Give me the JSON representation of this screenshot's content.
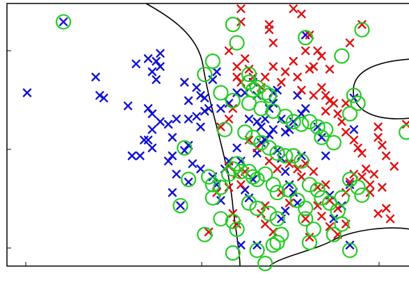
{
  "chart_data": {
    "type": "scatter",
    "title": "",
    "xlabel": "",
    "ylabel": "",
    "xlim": [
      0,
      100
    ],
    "ylim": [
      0,
      100
    ],
    "grid": false,
    "legend": "none",
    "colors": {
      "class_1": "#1010d0",
      "class_2": "#e01010",
      "support_vector_circle": "#22cc22",
      "boundary": "#000000"
    },
    "series": [
      {
        "values": [
          [
            14,
            93
          ],
          [
            5,
            66
          ],
          [
            22,
            72
          ],
          [
            23,
            65
          ],
          [
            24,
            64
          ],
          [
            32,
            77
          ],
          [
            35,
            79
          ],
          [
            36,
            74
          ],
          [
            37,
            71
          ],
          [
            38,
            81
          ],
          [
            37,
            78
          ],
          [
            38,
            76
          ],
          [
            44,
            70
          ],
          [
            47,
            68
          ],
          [
            45,
            63
          ],
          [
            48,
            65
          ],
          [
            30,
            61
          ],
          [
            35,
            60
          ],
          [
            36,
            58
          ],
          [
            36,
            52
          ],
          [
            38,
            55
          ],
          [
            40,
            54
          ],
          [
            42,
            56
          ],
          [
            41,
            49
          ],
          [
            45,
            56
          ],
          [
            47,
            57
          ],
          [
            48,
            53
          ],
          [
            49,
            59
          ],
          [
            50,
            60
          ],
          [
            51,
            71
          ],
          [
            52,
            74
          ],
          [
            49,
            64
          ],
          [
            53,
            60
          ],
          [
            31,
            42
          ],
          [
            33,
            42
          ],
          [
            34,
            48
          ],
          [
            35,
            48
          ],
          [
            36,
            45
          ],
          [
            40,
            40
          ],
          [
            41,
            42
          ],
          [
            44,
            44
          ],
          [
            45,
            46
          ],
          [
            46,
            39
          ],
          [
            45,
            32
          ],
          [
            42,
            35
          ],
          [
            41,
            28
          ],
          [
            43,
            23
          ],
          [
            48,
            37
          ],
          [
            51,
            34
          ],
          [
            52,
            31
          ],
          [
            53,
            25
          ],
          [
            54,
            37
          ],
          [
            55,
            40
          ],
          [
            57,
            45
          ],
          [
            58,
            40
          ],
          [
            59,
            29
          ],
          [
            60,
            26
          ],
          [
            61,
            33
          ],
          [
            62,
            43
          ],
          [
            63,
            47
          ],
          [
            64,
            48
          ],
          [
            65,
            50
          ],
          [
            66,
            52
          ],
          [
            67,
            44
          ],
          [
            68,
            41
          ],
          [
            69,
            36
          ],
          [
            70,
            31
          ],
          [
            71,
            28
          ],
          [
            72,
            24
          ],
          [
            73,
            42
          ],
          [
            60,
            56
          ],
          [
            62,
            55
          ],
          [
            63,
            53
          ],
          [
            64,
            56
          ],
          [
            65,
            60
          ],
          [
            66,
            62
          ],
          [
            68,
            56
          ],
          [
            69,
            51
          ],
          [
            70,
            52
          ],
          [
            71,
            55
          ],
          [
            73,
            58
          ],
          [
            74,
            60
          ],
          [
            72,
            65
          ],
          [
            66,
            66
          ],
          [
            67,
            67
          ],
          [
            77,
            53
          ],
          [
            78,
            49
          ],
          [
            79,
            42
          ],
          [
            80,
            27
          ],
          [
            81,
            18
          ],
          [
            83,
            23
          ],
          [
            85,
            31
          ],
          [
            86,
            64
          ],
          [
            86,
            52
          ],
          [
            58,
            8
          ],
          [
            62,
            8
          ],
          [
            68,
            18
          ],
          [
            69,
            21
          ],
          [
            74,
            88
          ],
          [
            85,
            8
          ],
          [
            55,
            62
          ],
          [
            57,
            66
          ],
          [
            59,
            66
          ],
          [
            61,
            70
          ],
          [
            62,
            65
          ]
        ]
      },
      {
        "values": [
          [
            58,
            98
          ],
          [
            58,
            93
          ],
          [
            65,
            92
          ],
          [
            71,
            98
          ],
          [
            73,
            96
          ],
          [
            75,
            88
          ],
          [
            77,
            82
          ],
          [
            74,
            82
          ],
          [
            71,
            78
          ],
          [
            69,
            74
          ],
          [
            66,
            76
          ],
          [
            68,
            70
          ],
          [
            72,
            72
          ],
          [
            75,
            75
          ],
          [
            76,
            76
          ],
          [
            78,
            80
          ],
          [
            73,
            67
          ],
          [
            76,
            65
          ],
          [
            78,
            68
          ],
          [
            80,
            63
          ],
          [
            81,
            62
          ],
          [
            79,
            59
          ],
          [
            82,
            58
          ],
          [
            84,
            62
          ],
          [
            88,
            92
          ],
          [
            85,
            85
          ],
          [
            80,
            75
          ],
          [
            79,
            65
          ],
          [
            83,
            55
          ],
          [
            84,
            51
          ],
          [
            86,
            48
          ],
          [
            87,
            45
          ],
          [
            88,
            43
          ],
          [
            89,
            37
          ],
          [
            91,
            35
          ],
          [
            90,
            28
          ],
          [
            92,
            53
          ],
          [
            93,
            46
          ],
          [
            94,
            42
          ],
          [
            96,
            38
          ],
          [
            92,
            20
          ],
          [
            94,
            22
          ],
          [
            95,
            18
          ],
          [
            60,
            48
          ],
          [
            62,
            45
          ],
          [
            65,
            40
          ],
          [
            67,
            37
          ],
          [
            70,
            39
          ],
          [
            72,
            37
          ],
          [
            73,
            34
          ],
          [
            74,
            39
          ],
          [
            76,
            36
          ],
          [
            77,
            30
          ],
          [
            79,
            31
          ],
          [
            80,
            25
          ],
          [
            82,
            22
          ],
          [
            84,
            28
          ],
          [
            85,
            32
          ],
          [
            86,
            35
          ],
          [
            88,
            34
          ],
          [
            90,
            31
          ],
          [
            93,
            30
          ],
          [
            55,
            38
          ],
          [
            57,
            35
          ],
          [
            58,
            31
          ],
          [
            59,
            36
          ],
          [
            55,
            30
          ],
          [
            52,
            28
          ],
          [
            50,
            13
          ],
          [
            56,
            20
          ],
          [
            57,
            16
          ],
          [
            63,
            20
          ],
          [
            64,
            16
          ],
          [
            66,
            13
          ],
          [
            68,
            28
          ],
          [
            70,
            24
          ],
          [
            74,
            18
          ],
          [
            75,
            11
          ],
          [
            77,
            23
          ],
          [
            78,
            19
          ],
          [
            80,
            15
          ],
          [
            82,
            12
          ],
          [
            84,
            16
          ],
          [
            99,
            54
          ],
          [
            92,
            49
          ],
          [
            57,
            72
          ],
          [
            58,
            70
          ],
          [
            60,
            75
          ],
          [
            61,
            72
          ],
          [
            55,
            82
          ],
          [
            57,
            76
          ],
          [
            59,
            79
          ],
          [
            63,
            68
          ],
          [
            64,
            72
          ],
          [
            53,
            53
          ],
          [
            55,
            56
          ],
          [
            56,
            60
          ],
          [
            64,
            23
          ],
          [
            65,
            90
          ],
          [
            66,
            85
          ]
        ]
      }
    ],
    "support_vectors": [
      [
        14,
        93
      ],
      [
        56,
        92
      ],
      [
        74,
        87
      ],
      [
        88,
        90
      ],
      [
        83,
        80
      ],
      [
        51,
        78
      ],
      [
        49,
        73
      ],
      [
        60,
        73
      ],
      [
        60,
        70
      ],
      [
        61,
        67
      ],
      [
        62,
        68
      ],
      [
        64,
        66
      ],
      [
        65,
        65
      ],
      [
        53,
        66
      ],
      [
        56,
        63
      ],
      [
        60,
        62
      ],
      [
        63,
        60
      ],
      [
        66,
        59
      ],
      [
        69,
        57
      ],
      [
        71,
        55
      ],
      [
        73,
        54
      ],
      [
        75,
        55
      ],
      [
        77,
        53
      ],
      [
        78,
        49
      ],
      [
        79,
        52
      ],
      [
        81,
        47
      ],
      [
        85,
        58
      ],
      [
        86,
        65
      ],
      [
        87,
        62
      ],
      [
        99,
        51
      ],
      [
        54,
        52
      ],
      [
        59,
        51
      ],
      [
        61,
        49
      ],
      [
        63,
        47
      ],
      [
        65,
        45
      ],
      [
        67,
        43
      ],
      [
        69,
        42
      ],
      [
        71,
        42
      ],
      [
        73,
        40
      ],
      [
        44,
        45
      ],
      [
        45,
        33
      ],
      [
        43,
        23
      ],
      [
        50,
        34
      ],
      [
        51,
        31
      ],
      [
        53,
        30
      ],
      [
        55,
        35
      ],
      [
        56,
        37
      ],
      [
        57,
        39
      ],
      [
        58,
        36
      ],
      [
        60,
        36
      ],
      [
        61,
        34
      ],
      [
        62,
        33
      ],
      [
        64,
        35
      ],
      [
        66,
        31
      ],
      [
        67,
        28
      ],
      [
        70,
        29
      ],
      [
        72,
        25
      ],
      [
        74,
        22
      ],
      [
        75,
        31
      ],
      [
        77,
        29
      ],
      [
        78,
        26
      ],
      [
        80,
        24
      ],
      [
        82,
        21
      ],
      [
        83,
        26
      ],
      [
        85,
        33
      ],
      [
        87,
        30
      ],
      [
        88,
        27
      ],
      [
        51,
        26
      ],
      [
        53,
        18
      ],
      [
        56,
        17
      ],
      [
        57,
        14
      ],
      [
        60,
        24
      ],
      [
        62,
        22
      ],
      [
        65,
        20
      ],
      [
        67,
        18
      ],
      [
        68,
        12
      ],
      [
        74,
        18
      ],
      [
        76,
        14
      ],
      [
        81,
        12
      ],
      [
        83,
        16
      ],
      [
        49,
        12
      ],
      [
        66,
        8
      ],
      [
        67,
        9
      ],
      [
        56,
        5
      ],
      [
        62,
        6
      ],
      [
        64,
        1
      ],
      [
        85,
        6
      ],
      [
        75,
        9
      ],
      [
        57,
        85
      ]
    ]
  }
}
